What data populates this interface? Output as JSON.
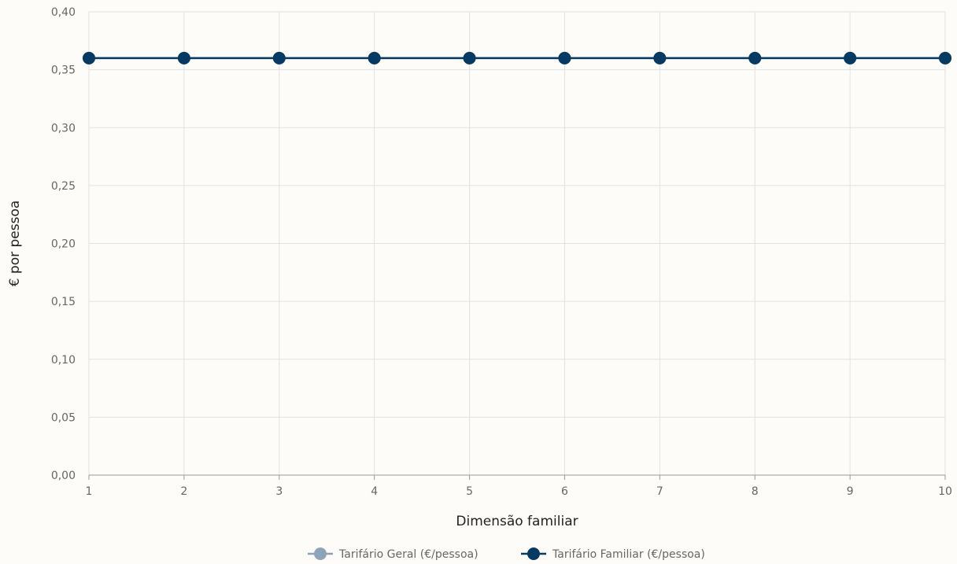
{
  "chart_data": {
    "type": "line",
    "title": "",
    "xlabel": "Dimensão familiar",
    "ylabel": "€ por pessoa",
    "x": [
      1,
      2,
      3,
      4,
      5,
      6,
      7,
      8,
      9,
      10
    ],
    "x_tick_labels": [
      "1",
      "2",
      "3",
      "4",
      "5",
      "6",
      "7",
      "8",
      "9",
      "10"
    ],
    "ylim": [
      0,
      0.4
    ],
    "y_ticks": [
      0,
      0.05,
      0.1,
      0.15,
      0.2,
      0.25,
      0.3,
      0.35,
      0.4
    ],
    "y_tick_labels": [
      "0,00",
      "0,05",
      "0,10",
      "0,15",
      "0,20",
      "0,25",
      "0,30",
      "0,35",
      "0,40"
    ],
    "grid": true,
    "legend_position": "bottom-center",
    "series": [
      {
        "name": "Tarifário Geral (€/pessoa)",
        "color": "#8fa3b8",
        "values": [
          0.36,
          0.36,
          0.36,
          0.36,
          0.36,
          0.36,
          0.36,
          0.36,
          0.36,
          0.36
        ]
      },
      {
        "name": "Tarifário Familiar (€/pessoa)",
        "color": "#063a63",
        "values": [
          0.36,
          0.36,
          0.36,
          0.36,
          0.36,
          0.36,
          0.36,
          0.36,
          0.36,
          0.36
        ]
      }
    ]
  }
}
